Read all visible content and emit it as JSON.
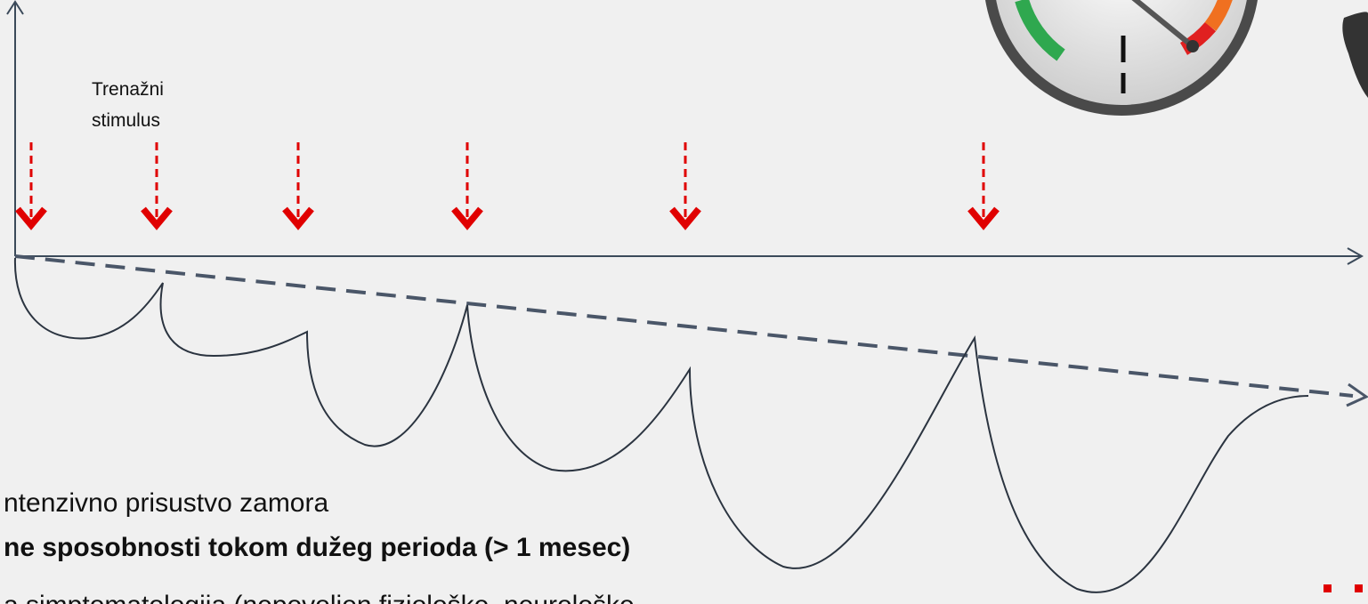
{
  "annotation": {
    "lines": [
      "Trenažni",
      "stimulus"
    ]
  },
  "bullets": [
    "ntenzivno prisustvo zamora",
    "ne sposobnosti tokom dužeg perioda (> 1 mesec)",
    "a simptomatologija (nepovoljen fiziološke, neurološke"
  ]
}
